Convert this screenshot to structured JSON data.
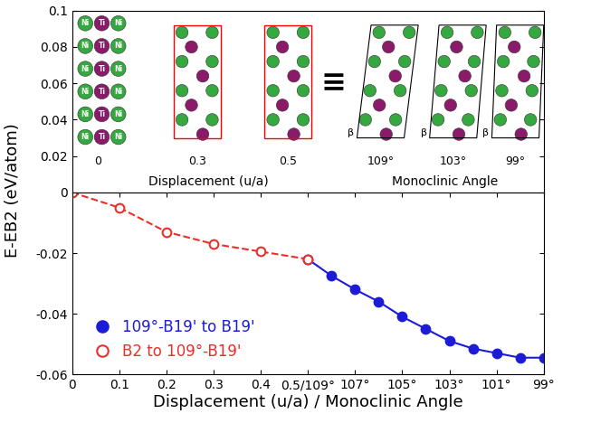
{
  "chart_data": [
    {
      "type": "diagram",
      "ylim": [
        0,
        0.1
      ],
      "yticks": [
        0.02,
        0.04,
        0.06,
        0.08,
        0.1
      ],
      "tick_labels": "y",
      "annotations": {
        "atoms": [
          "Ni",
          "Ti"
        ],
        "displacement_labels": [
          "0",
          "0.3",
          "0.5"
        ],
        "displacement_title": "Displacement (u/a)",
        "equivalence": "≡",
        "angle_labels": [
          "109°",
          "103°",
          "99°"
        ],
        "angle_title": "Monoclinic Angle",
        "angle_symbol": "β"
      }
    },
    {
      "type": "line",
      "y_label": "E-EB2 (eV/atom)",
      "x_label": "Displacement (u/a) / Monoclinic Angle",
      "xlim": [
        0,
        1.0
      ],
      "xticks": [
        0,
        0.1,
        0.2,
        0.3,
        0.4,
        {
          "value": 0.5,
          "label": "0.5/109°"
        },
        {
          "value": 0.6,
          "label": "107°"
        },
        {
          "value": 0.7,
          "label": "105°"
        },
        {
          "value": 0.8,
          "label": "103°"
        },
        {
          "value": 0.9,
          "label": "101°"
        },
        {
          "value": 1.0,
          "label": "99°"
        }
      ],
      "ylim": [
        -0.06,
        0
      ],
      "yticks": [
        -0.06,
        -0.04,
        -0.02,
        0
      ],
      "grid": false,
      "legend": "lower left",
      "series": [
        {
          "name": "109°-B19' to B19'",
          "color": "#1c1cd8",
          "marker": "circle",
          "line_style": "solid",
          "x": [
            0.5,
            0.55,
            0.6,
            0.65,
            0.7,
            0.75,
            0.8,
            0.85,
            0.9,
            0.95,
            1.0
          ],
          "values": [
            -0.022,
            -0.0275,
            -0.032,
            -0.036,
            -0.041,
            -0.045,
            -0.049,
            -0.0515,
            -0.053,
            -0.0545,
            -0.0545
          ]
        },
        {
          "name": "B2 to 109°-B19'",
          "color": "#e8302a",
          "marker": "open circle",
          "line_style": "dashed",
          "x": [
            0,
            0.1,
            0.2,
            0.3,
            0.4,
            0.5
          ],
          "values": [
            0,
            -0.005,
            -0.013,
            -0.017,
            -0.0195,
            -0.022
          ]
        }
      ]
    }
  ]
}
